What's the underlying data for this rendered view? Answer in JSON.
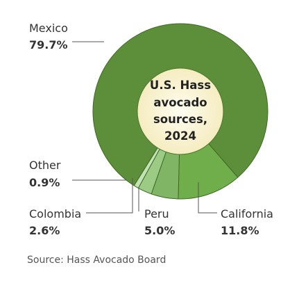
{
  "chart_data": {
    "type": "pie",
    "center_title_lines": [
      "U.S. Hass",
      "avocado",
      "sources,",
      "2024"
    ],
    "slices": [
      {
        "name": "Mexico",
        "value": 79.7,
        "label": "79.7%",
        "color": "#5d8e3a"
      },
      {
        "name": "California",
        "value": 11.8,
        "label": "11.8%",
        "color": "#6fae4a"
      },
      {
        "name": "Peru",
        "value": 5.0,
        "label": "5.0%",
        "color": "#7fb564"
      },
      {
        "name": "Colombia",
        "value": 2.6,
        "label": "2.6%",
        "color": "#9ccb86"
      },
      {
        "name": "Other",
        "value": 0.9,
        "label": "0.9%",
        "color": "#c3e2b4"
      }
    ],
    "start_angle_deg": 122,
    "center_colors": [
      "#fffdf0",
      "#f5ecc0"
    ],
    "source": "Source: Hass Avocado Board"
  }
}
